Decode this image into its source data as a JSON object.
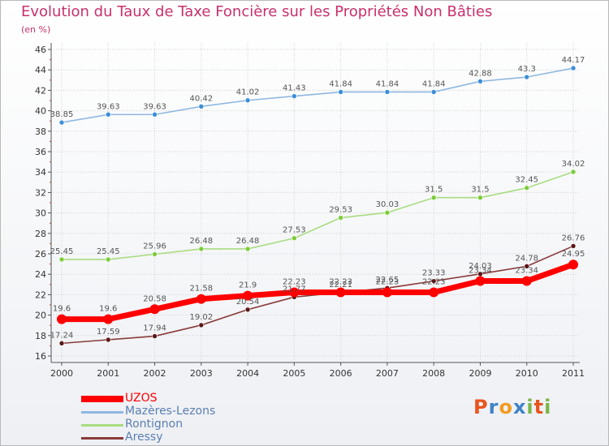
{
  "header": {
    "title": "Evolution du Taux de Taxe Foncière sur les Propriétés Non Bâties",
    "unit": "(en %)"
  },
  "logo": {
    "text": "Proxiti",
    "letter_colors": [
      "#e8551c",
      "#3f83c6",
      "#f29b1f",
      "#3f83c6",
      "#7ab648",
      "#e8551c",
      "#7ab648"
    ]
  },
  "colors": {
    "title": "#c8306c",
    "grid": "#cfcfcf",
    "axis": "#555555"
  },
  "chart_data": {
    "type": "line",
    "title": "Evolution du Taux de Taxe Foncière sur les Propriétés Non Bâties",
    "ylabel": "(en %)",
    "xlabel": "",
    "x": [
      "2000",
      "2001",
      "2002",
      "2003",
      "2004",
      "2005",
      "2006",
      "2007",
      "2008",
      "2009",
      "2010",
      "2011"
    ],
    "ylim": [
      16,
      46
    ],
    "yticks": [
      16,
      18,
      20,
      22,
      24,
      26,
      28,
      30,
      32,
      34,
      36,
      38,
      40,
      42,
      44,
      46
    ],
    "grid": true,
    "legend_position": "bottom-left",
    "series": [
      {
        "name": "UZOS",
        "color": "#ff0000",
        "marker": "#ff0000",
        "width": 7,
        "values": [
          19.6,
          19.6,
          20.58,
          21.58,
          21.9,
          22.23,
          22.23,
          22.23,
          22.23,
          23.34,
          23.34,
          24.95
        ],
        "labels": [
          "19.6",
          "19.6",
          "20.58",
          "21.58",
          "21.9",
          "22.23",
          "22.23",
          "22.23",
          "22.23",
          "23.34",
          "23.34",
          "24.95"
        ]
      },
      {
        "name": "Mazères-Lezons",
        "color": "#8fb8e0",
        "marker": "#3a8fd9",
        "width": 1.6,
        "values": [
          38.85,
          39.63,
          39.63,
          40.42,
          41.02,
          41.43,
          41.84,
          41.84,
          41.84,
          42.88,
          43.3,
          44.17
        ],
        "labels": [
          "38.85",
          "39.63",
          "39.63",
          "40.42",
          "41.02",
          "41.43",
          "41.84",
          "41.84",
          "41.84",
          "42.88",
          "43.3",
          "44.17"
        ]
      },
      {
        "name": "Rontignon",
        "color": "#a8dc80",
        "marker": "#7ccc3a",
        "width": 1.6,
        "values": [
          25.45,
          25.45,
          25.96,
          26.48,
          26.48,
          27.53,
          29.53,
          30.03,
          31.5,
          31.5,
          32.45,
          34.02
        ],
        "labels": [
          "25.45",
          "25.45",
          "25.96",
          "26.48",
          "26.48",
          "27.53",
          "29.53",
          "30.03",
          "31.5",
          "31.5",
          "32.45",
          "34.02"
        ]
      },
      {
        "name": "Aressy",
        "color": "#8a3a3a",
        "marker": "#5a1818",
        "width": 1.6,
        "values": [
          17.24,
          17.59,
          17.94,
          19.02,
          20.54,
          21.77,
          22.21,
          22.65,
          23.33,
          24.03,
          24.78,
          26.76
        ],
        "labels": [
          "17.24",
          "17.59",
          "17.94",
          "19.02",
          "20.54",
          "21.77",
          "22.21",
          "22.65",
          "23.33",
          "24.03",
          "24.78",
          "26.76"
        ]
      }
    ]
  }
}
